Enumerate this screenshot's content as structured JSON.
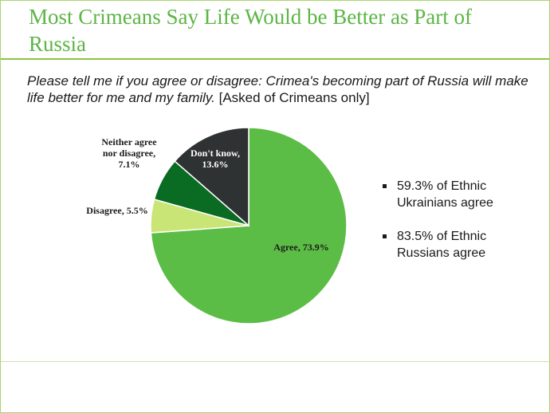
{
  "header": {
    "title": "Most Crimeans Say Life Would be Better as Part of Russia"
  },
  "subtitle": {
    "question": "Please tell me if you agree or disagree: Crimea's becoming part of Russia will make life better for me and my family.",
    "note": "[Asked of Crimeans only]"
  },
  "chart_data": {
    "type": "pie",
    "title": "",
    "start_angle_deg": 0,
    "direction": "clockwise",
    "slices": [
      {
        "name": "Agree",
        "value": 73.9,
        "label_lines": [
          "Agree, 73.9%"
        ],
        "color": "#5cbd46",
        "label_color": "#1a1a1a"
      },
      {
        "name": "Disagree",
        "value": 5.5,
        "label_lines": [
          "Disagree, 5.5%"
        ],
        "color": "#c9e576",
        "label_color": "#1a1a1a"
      },
      {
        "name": "Neither agree nor disagree",
        "value": 7.1,
        "label_lines": [
          "Neither agree",
          "nor disagree,",
          "7.1%"
        ],
        "color": "#0a6b22",
        "label_color": "#1a1a1a"
      },
      {
        "name": "Don't know",
        "value": 13.6,
        "label_lines": [
          "Don't know,",
          "13.6%"
        ],
        "color": "#2f3233",
        "label_color": "#ffffff"
      }
    ]
  },
  "bullets": [
    {
      "text": "59.3% of Ethnic Ukrainians agree"
    },
    {
      "text": "83.5% of Ethnic Russians agree"
    }
  ],
  "colors": {
    "title": "#5cb545",
    "rule": "#8cc63f",
    "slice_border": "#ffffff"
  }
}
